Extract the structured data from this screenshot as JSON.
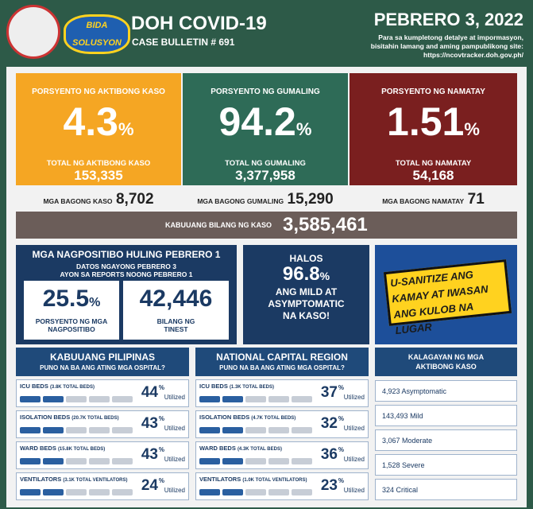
{
  "header": {
    "title": "DOH COVID-19",
    "subtitle": "CASE BULLETIN # 691",
    "date": "PEBRERO 3, 2022",
    "note_lines": [
      "Para sa kumpletong detalye at impormasyon,",
      "bisitahin lamang and aming pampublikong site:",
      "https://ncovtracker.doh.gov.ph/"
    ],
    "logo_text": "BIDA SOLUSYON"
  },
  "stats": [
    {
      "label": "PORSYENTO NG AKTIBONG KASO",
      "value": "4.3",
      "unit": "%",
      "total_label": "TOTAL NG AKTIBONG KASO",
      "total": "153,335"
    },
    {
      "label": "PORSYENTO NG GUMALING",
      "value": "94.2",
      "unit": "%",
      "total_label": "TOTAL NG GUMALING",
      "total": "3,377,958"
    },
    {
      "label": "PORSYENTO NG NAMATAY",
      "value": "1.51",
      "unit": "%",
      "total_label": "TOTAL NG NAMATAY",
      "total": "54,168"
    }
  ],
  "new_counts": [
    {
      "label": "MGA BAGONG KASO",
      "value": "8,702"
    },
    {
      "label": "MGA BAGONG GUMALING",
      "value": "15,290"
    },
    {
      "label": "MGA BAGONG NAMATAY",
      "value": "71"
    }
  ],
  "cumulative": {
    "label": "KABUUANG BILANG NG KASO",
    "value": "3,585,461"
  },
  "positivity": {
    "title": "MGA NAGPOSITIBO HULING PEBRERO 1",
    "subtitle_lines": [
      "DATOS NGAYONG PEBRERO 3",
      "AYON SA REPORTS NOONG PEBRERO 1"
    ],
    "boxes": [
      {
        "value": "25.5",
        "unit": "%",
        "label_lines": [
          "PORSYENTO NG MGA",
          "NAGPOSITIBO"
        ]
      },
      {
        "value": "42,446",
        "label_lines": [
          "BILANG NG",
          "TINEST"
        ]
      }
    ]
  },
  "mild": {
    "lead": "HALOS",
    "value": "96.8",
    "unit": "%",
    "lines": [
      "ANG MILD AT",
      "ASYMPTOMATIC",
      "NA KASO!"
    ]
  },
  "banner": {
    "lines": [
      "U-SANITIZE ANG",
      "KAMAY AT IWASAN",
      "ANG KULOB NA LUGAR"
    ]
  },
  "regions": [
    {
      "title": "KABUUANG PILIPINAS",
      "subtitle": "PUNO NA BA ANG ATING MGA OSPITAL?",
      "rows": [
        {
          "label": "ICU BEDS",
          "detail": "(3.8K TOTAL BEDS)",
          "value": "44",
          "unit": "%",
          "suffix": "Utilized"
        },
        {
          "label": "ISOLATION BEDS",
          "detail": "(20.7K TOTAL BEDS)",
          "value": "43",
          "unit": "%",
          "suffix": "Utilized"
        },
        {
          "label": "WARD BEDS",
          "detail": "(15.8K TOTAL BEDS)",
          "value": "43",
          "unit": "%",
          "suffix": "Utilized"
        },
        {
          "label": "VENTILATORS",
          "detail": "(3.1K TOTAL VENTILATORS)",
          "value": "24",
          "unit": "%",
          "suffix": "Utilized"
        }
      ]
    },
    {
      "title": "NATIONAL CAPITAL REGION",
      "subtitle": "PUNO NA BA ANG ATING MGA OSPITAL?",
      "rows": [
        {
          "label": "ICU BEDS",
          "detail": "(1.3K TOTAL BEDS)",
          "value": "37",
          "unit": "%",
          "suffix": "Utilized"
        },
        {
          "label": "ISOLATION BEDS",
          "detail": "(4.7K TOTAL BEDS)",
          "value": "32",
          "unit": "%",
          "suffix": "Utilized"
        },
        {
          "label": "WARD BEDS",
          "detail": "(4.3K TOTAL BEDS)",
          "value": "36",
          "unit": "%",
          "suffix": "Utilized"
        },
        {
          "label": "VENTILATORS",
          "detail": "(1.0K TOTAL VENTILATORS)",
          "value": "23",
          "unit": "%",
          "suffix": "Utilized"
        }
      ]
    }
  ],
  "active_status": {
    "title_lines": [
      "KALAGAYAN NG MGA",
      "AKTIBONG KASO"
    ],
    "rows": [
      {
        "value": "4,923",
        "label": "Asymptomatic"
      },
      {
        "value": "143,493",
        "label": "Mild"
      },
      {
        "value": "3,067",
        "label": "Moderate"
      },
      {
        "value": "1,528",
        "label": "Severe"
      },
      {
        "value": "324",
        "label": "Critical"
      }
    ]
  }
}
